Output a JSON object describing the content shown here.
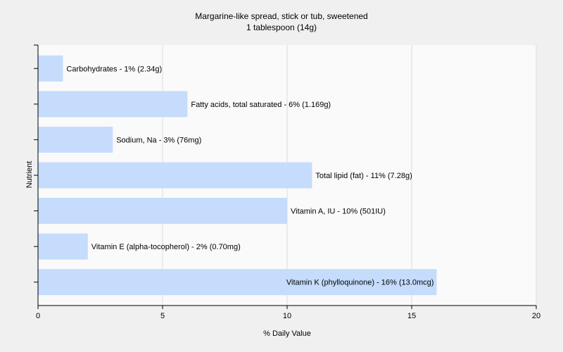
{
  "chart_data": {
    "type": "bar",
    "orientation": "horizontal",
    "title": "Margarine-like spread, stick or tub, sweetened",
    "subtitle": "1 tablespoon (14g)",
    "xlabel": "% Daily Value",
    "ylabel": "Nutrient",
    "xlim": [
      0,
      20
    ],
    "xticks": [
      0,
      5,
      10,
      15,
      20
    ],
    "grid": true,
    "categories": [
      "Carbohydrates",
      "Fatty acids, total saturated",
      "Sodium, Na",
      "Total lipid (fat)",
      "Vitamin A, IU",
      "Vitamin E (alpha-tocopherol)",
      "Vitamin K (phylloquinone)"
    ],
    "values": [
      1,
      6,
      3,
      11,
      10,
      2,
      16
    ],
    "labels": [
      "Carbohydrates - 1% (2.34g)",
      "Fatty acids, total saturated - 6% (1.169g)",
      "Sodium, Na - 3% (76mg)",
      "Total lipid (fat) - 11% (7.28g)",
      "Vitamin A, IU - 10% (501IU)",
      "Vitamin E (alpha-tocopherol) - 2% (0.70mg)",
      "Vitamin K (phylloquinone) - 16% (13.0mcg)"
    ],
    "bar_color": "#c5dcfc",
    "plot_background": "#fafafa",
    "grid_color": "#dcdcdc"
  }
}
